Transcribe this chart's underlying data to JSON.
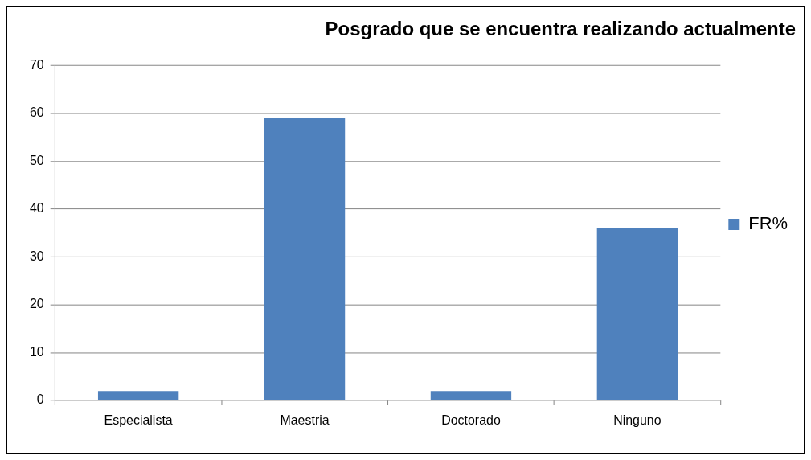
{
  "chart_data": {
    "type": "bar",
    "title": "Posgrado que se encuentra realizando actualmente",
    "categories": [
      "Especialista",
      "Maestria",
      "Doctorado",
      "Ninguno"
    ],
    "series": [
      {
        "name": "FR%",
        "color": "#4f81bd",
        "values": [
          2,
          59,
          2,
          36
        ]
      }
    ],
    "ylim": [
      0,
      70
    ],
    "yticks": [
      0,
      10,
      20,
      30,
      40,
      50,
      60,
      70
    ],
    "grid": "y",
    "legend": "right"
  }
}
